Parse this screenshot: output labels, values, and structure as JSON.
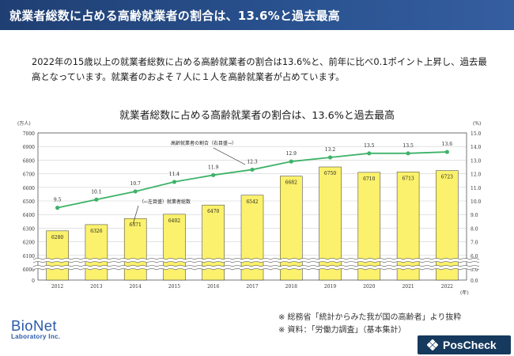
{
  "header": {
    "title": "就業者総数に占める高齢就業者の割合は、13.6%と過去最高"
  },
  "summary": "2022年の15歳以上の就業者総数に占める高齢就業者の割合は13.6%と、前年に比べ0.1ポイント上昇し、過去最高となっています。就業者のおよそ７人に１人を高齢就業者が占めています。",
  "chart_data": {
    "type": "bar",
    "title": "就業者総数に占める高齢就業者の割合は、13.6%と過去最高",
    "categories": [
      "2012",
      "2013",
      "2014",
      "2015",
      "2016",
      "2017",
      "2018",
      "2019",
      "2020",
      "2021",
      "2022"
    ],
    "xlabel": "(年)",
    "ylabel": "(万人)",
    "y2label": "(%)",
    "ylim": [
      6000,
      7000
    ],
    "y2lim": [
      0.0,
      15.0
    ],
    "yticks": [
      "6000",
      "6100",
      "6200",
      "6300",
      "6400",
      "6500",
      "6600",
      "6700",
      "6800",
      "6900",
      "7000"
    ],
    "y2ticks": [
      "0.0",
      "5.0",
      "6.0",
      "7.0",
      "8.0",
      "9.0",
      "10.0",
      "11.0",
      "12.0",
      "13.0",
      "14.0",
      "15.0"
    ],
    "axis_break": true,
    "grid": true,
    "series": [
      {
        "name": "就業者総数",
        "type": "bar",
        "axis": "left",
        "color": "#fbf16c",
        "values": [
          6280,
          6326,
          6371,
          6402,
          6470,
          6542,
          6682,
          6750,
          6710,
          6713,
          6723
        ]
      },
      {
        "name": "高齢就業者の割合",
        "type": "line",
        "axis": "right",
        "color": "#3db368",
        "values": [
          9.5,
          10.1,
          10.7,
          11.4,
          11.9,
          12.3,
          12.9,
          13.2,
          13.5,
          13.5,
          13.6
        ]
      }
    ],
    "annotations": [
      "高齢就業者の割合（右目盛→）",
      "（←左目盛）就業者総数"
    ]
  },
  "source": {
    "line1": "※ 総務省「統計からみた我が国の高齢者」より抜粋",
    "line2": "※ 資料：「労働力調査」（基本集計）"
  },
  "logo": {
    "main": "BioNet",
    "sub": "Laboratory Inc."
  },
  "badge": {
    "text": "PosCheck"
  },
  "colors": {
    "banner": "#1f3f73",
    "bar": "#fbf16c",
    "line": "#3db368",
    "logo": "#2a5aa8",
    "badge": "#16395e"
  }
}
